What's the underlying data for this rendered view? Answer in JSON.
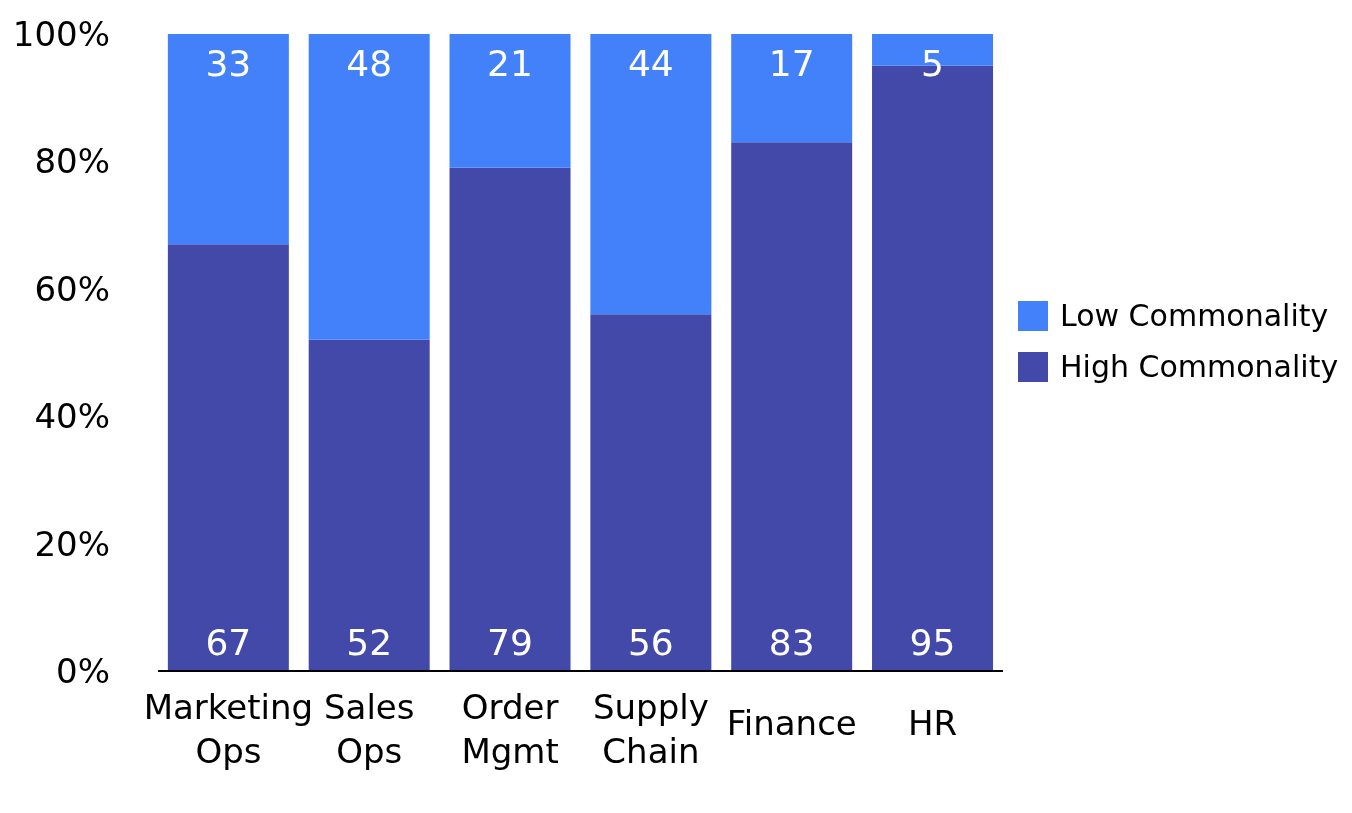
{
  "chart_data": {
    "type": "bar",
    "stacked": true,
    "categories": [
      "Marketing Ops",
      "Sales Ops",
      "Order Mgmt",
      "Supply Chain",
      "Finance",
      "HR"
    ],
    "series": [
      {
        "name": "High Commonality",
        "color": "#4349a8",
        "values": [
          67,
          52,
          79,
          56,
          83,
          95
        ]
      },
      {
        "name": "Low Commonality",
        "color": "#4381fb",
        "values": [
          33,
          48,
          21,
          44,
          17,
          5
        ]
      }
    ],
    "ylim": [
      0,
      100
    ],
    "yticks": [
      {
        "value": 0,
        "label": "0%"
      },
      {
        "value": 20,
        "label": "20%"
      },
      {
        "value": 40,
        "label": "40%"
      },
      {
        "value": 60,
        "label": "60%"
      },
      {
        "value": 80,
        "label": "80%"
      },
      {
        "value": 100,
        "label": "100%"
      }
    ],
    "data_labels": true,
    "legend": "right",
    "grid": false
  }
}
